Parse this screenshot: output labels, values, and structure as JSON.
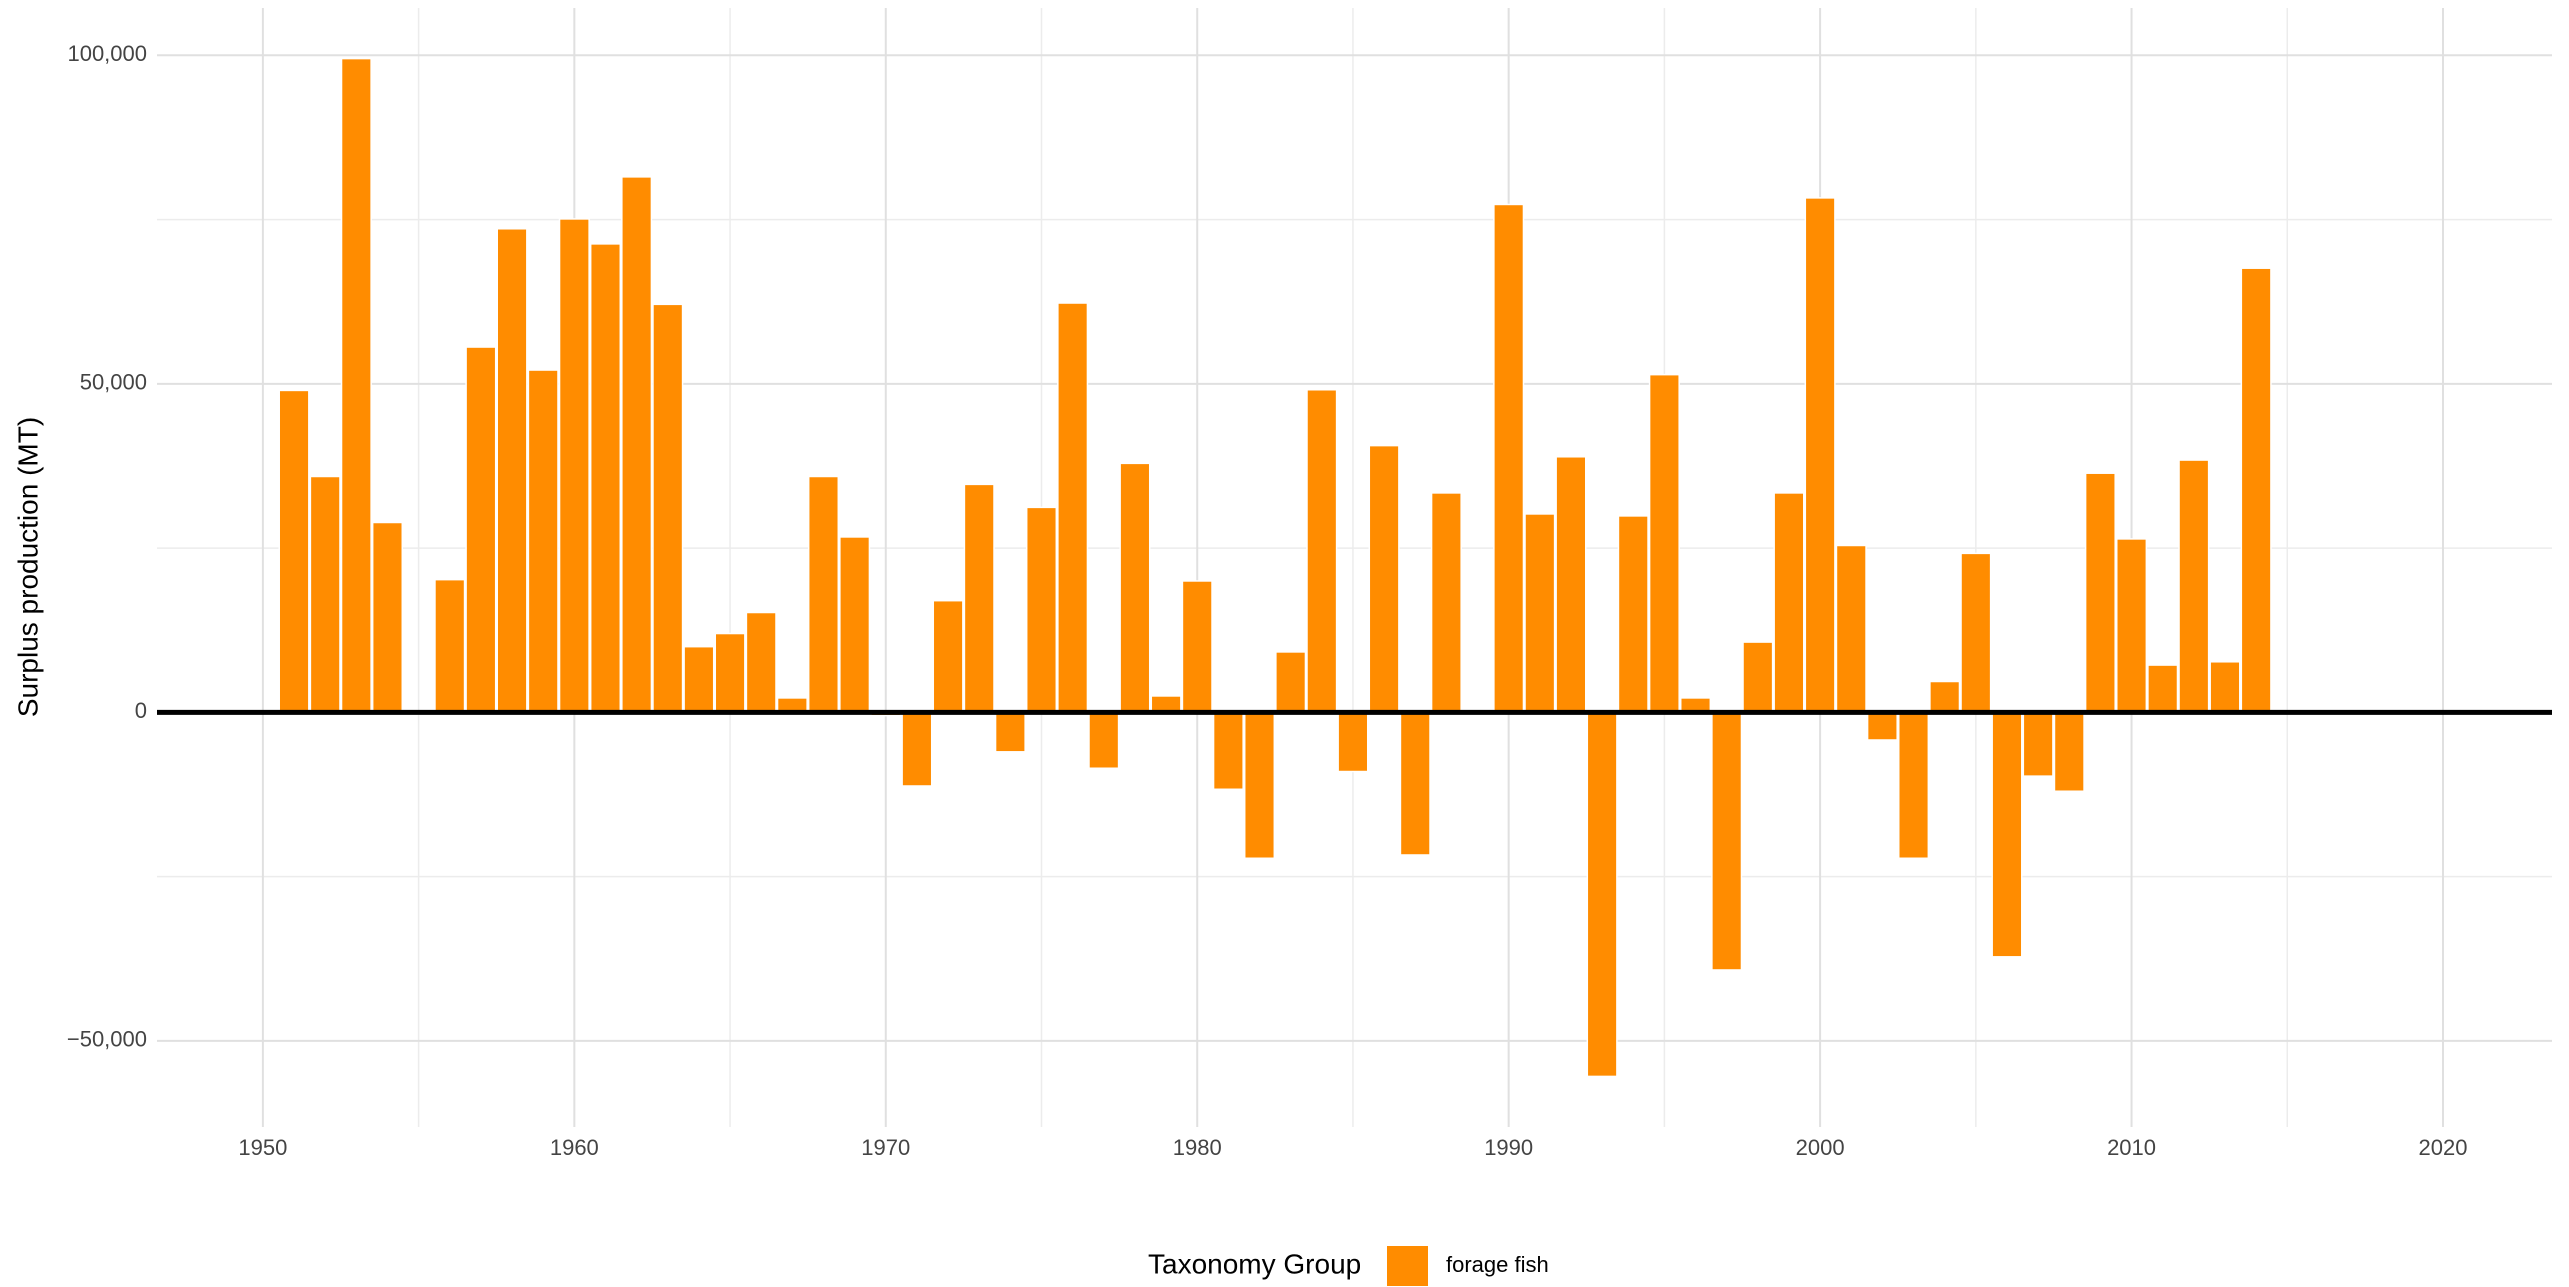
{
  "chart_data": {
    "type": "bar",
    "y_label": "Surplus production (MT)",
    "legend_title": "Taxonomy Group",
    "legend_position": "bottom",
    "grid": true,
    "minor_grid": true,
    "zero_line": true,
    "x": [
      1951,
      1952,
      1953,
      1954,
      1955,
      1956,
      1957,
      1958,
      1959,
      1960,
      1961,
      1962,
      1963,
      1964,
      1965,
      1966,
      1967,
      1968,
      1969,
      1970,
      1971,
      1972,
      1973,
      1974,
      1975,
      1976,
      1977,
      1978,
      1979,
      1980,
      1981,
      1982,
      1983,
      1984,
      1985,
      1986,
      1987,
      1988,
      1989,
      1990,
      1991,
      1992,
      1993,
      1994,
      1995,
      1996,
      1997,
      1998,
      1999,
      2000,
      2001,
      2002,
      2003,
      2004,
      2005,
      2006,
      2007,
      2008,
      2009,
      2010,
      2011,
      2012,
      2013,
      2014
    ],
    "series": [
      {
        "name": "forage fish",
        "color": "#ff8c00",
        "values": [
          49000,
          35900,
          99500,
          28900,
          -300,
          20200,
          55600,
          73600,
          52100,
          75100,
          71300,
          81500,
          62100,
          10000,
          12000,
          15200,
          2200,
          35900,
          26700,
          -500,
          -11200,
          17000,
          34700,
          -6000,
          31200,
          62300,
          -8500,
          37900,
          2500,
          20000,
          -11700,
          -22200,
          9200,
          49100,
          -9000,
          40600,
          -21700,
          33400,
          -300,
          77300,
          30200,
          38900,
          -55400,
          29900,
          51400,
          2200,
          -39200,
          10700,
          33400,
          78300,
          25400,
          -4200,
          -22200,
          4700,
          24200,
          -37200,
          -9700,
          -12000,
          36400,
          26400,
          7200,
          38400,
          7700,
          67600
        ]
      }
    ],
    "xlim": [
      1946.6,
      2023.5
    ],
    "xticks": [
      1950,
      1960,
      1970,
      1980,
      1990,
      2000,
      2010,
      2020
    ],
    "ylim": [
      -63100,
      107200
    ],
    "yticks": [
      {
        "value": -50000,
        "label": "−50,000"
      },
      0,
      {
        "value": 50000,
        "label": "50,000"
      },
      {
        "value": 100000,
        "label": "100,000"
      }
    ]
  }
}
